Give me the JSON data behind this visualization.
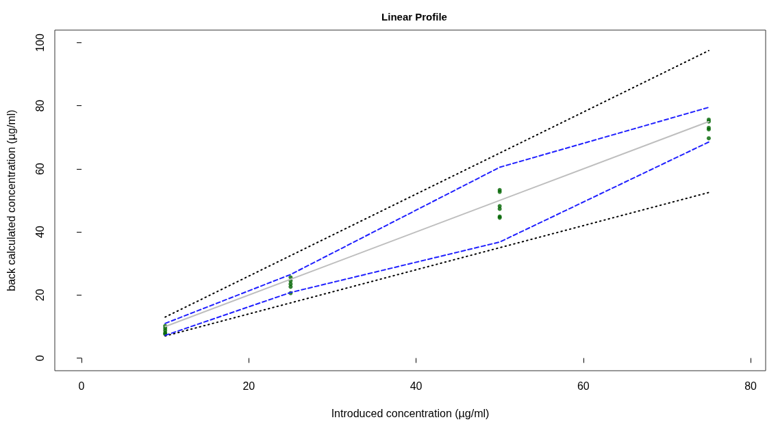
{
  "chart_data": {
    "type": "scatter",
    "title": "Linear Profile",
    "xlabel": "Introduced concentration (µg/ml)",
    "ylabel": "back calculated concentration (µg/ml)",
    "xlim": [
      -3.2,
      81.8
    ],
    "xticks": [
      0,
      20,
      40,
      60,
      80
    ],
    "ylim": [
      -4,
      104
    ],
    "yticks": [
      0,
      20,
      40,
      60,
      80,
      100
    ],
    "grid": false,
    "series": [
      {
        "type": "line",
        "color": "#000000",
        "line_style": "dotted",
        "marker": "none",
        "x": [
          10,
          75
        ],
        "values": [
          13,
          97.5
        ]
      },
      {
        "type": "line",
        "color": "#000000",
        "line_style": "dotted",
        "marker": "none",
        "x": [
          10,
          75
        ],
        "values": [
          7,
          52.5
        ]
      },
      {
        "type": "line",
        "color": "#2020ff",
        "line_style": "dashed",
        "marker": "none",
        "x": [
          10,
          25,
          50,
          75
        ],
        "values": [
          11,
          26.5,
          60.5,
          79.5
        ]
      },
      {
        "type": "line",
        "color": "#2020ff",
        "line_style": "dashed",
        "marker": "none",
        "x": [
          10,
          25,
          50,
          75
        ],
        "values": [
          7.2,
          20.8,
          36.8,
          68.5
        ]
      },
      {
        "type": "line",
        "color": "#bebebe",
        "line_style": "solid",
        "marker": "none",
        "x": [
          10,
          75
        ],
        "values": [
          10,
          75
        ]
      },
      {
        "color": "#006400",
        "marker": "circle",
        "x": [
          10,
          10,
          10,
          10,
          10,
          25,
          25,
          25,
          25,
          25,
          50,
          50,
          50,
          50,
          50,
          50,
          75,
          75,
          75,
          75,
          75
        ],
        "values": [
          10.2,
          9.5,
          8.8,
          8.0,
          7.6,
          25.6,
          24.5,
          23.5,
          22.6,
          20.6,
          53.3,
          52.7,
          48.2,
          47.3,
          44.9,
          44.5,
          75.6,
          75.0,
          73.0,
          72.5,
          69.7
        ]
      }
    ]
  }
}
